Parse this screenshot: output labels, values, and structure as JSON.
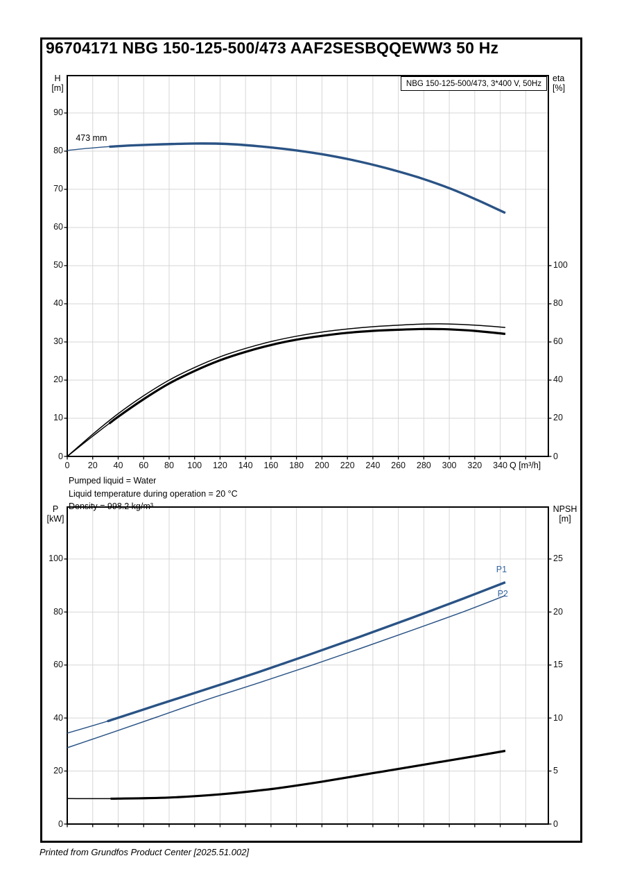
{
  "page": {
    "title": "96704171 NBG 150-125-500/473 AAF2SESBQQEWW3 50 Hz",
    "footer": "Printed from Grundfos Product Center [2025.51.002]",
    "info_lines": [
      "Pumped liquid = Water",
      "Liquid temperature during operation = 20 °C",
      "Density = 998.2 kg/m³"
    ]
  },
  "colors": {
    "curve_blue": "#2a5385",
    "curve_black": "#000000",
    "label_blue": "#3465a0",
    "gridline": "#d6d6d6",
    "frame": "#000000"
  },
  "chart_data": [
    {
      "type": "line",
      "name": "head-efficiency-chart",
      "legend": "NBG 150-125-500/473, 3*400 V, 50Hz",
      "xlabel": "Q [m³/h]",
      "x_axis": {
        "min": 0,
        "max": 377.8,
        "tick_labels": [
          0,
          20,
          40,
          60,
          80,
          100,
          120,
          140,
          160,
          180,
          200,
          220,
          240,
          260,
          280,
          300,
          320,
          340
        ],
        "gridlines": [
          20,
          40,
          60,
          80,
          100,
          120,
          140,
          160,
          180,
          200,
          220,
          240,
          260,
          280,
          300,
          320,
          340,
          360
        ],
        "extra_ticks": [
          360
        ],
        "show_tick_labels": true
      },
      "y_left": {
        "label": "H",
        "unit": "[m]",
        "min": 0,
        "max": 99.8,
        "tick_labels": [
          0,
          10,
          20,
          30,
          40,
          50,
          60,
          70,
          80,
          90
        ],
        "gridlines": [
          10,
          20,
          30,
          40,
          50,
          60,
          70,
          80,
          90
        ]
      },
      "y_right": {
        "label": "eta",
        "unit": "[%]",
        "min": 0,
        "max": 199.6,
        "tick_labels": [
          0,
          20,
          40,
          60,
          80,
          100
        ]
      },
      "series": [
        {
          "name": "head-curve-473mm",
          "axis": "left",
          "color": "#2a5385",
          "width": 1.4,
          "thick_width": 3.4,
          "thick_from_q": 33,
          "points": [
            [
              0,
              80.2
            ],
            [
              25,
              81.0
            ],
            [
              50,
              81.5
            ],
            [
              75,
              81.8
            ],
            [
              100,
              82.0
            ],
            [
              125,
              81.9
            ],
            [
              150,
              81.3
            ],
            [
              175,
              80.4
            ],
            [
              200,
              79.2
            ],
            [
              225,
              77.6
            ],
            [
              250,
              75.6
            ],
            [
              275,
              73.2
            ],
            [
              300,
              70.3
            ],
            [
              322,
              67.2
            ],
            [
              344,
              63.8
            ]
          ]
        },
        {
          "name": "efficiency-pump-curve",
          "axis": "right",
          "color": "#000000",
          "width": 1.5,
          "thick_width": null,
          "thick_from_q": null,
          "points": [
            [
              0,
              0
            ],
            [
              20,
              11.6
            ],
            [
              40,
              22.4
            ],
            [
              60,
              31.8
            ],
            [
              80,
              40.0
            ],
            [
              100,
              46.6
            ],
            [
              120,
              52.2
            ],
            [
              140,
              56.6
            ],
            [
              160,
              60.2
            ],
            [
              180,
              63.0
            ],
            [
              200,
              65.2
            ],
            [
              220,
              66.8
            ],
            [
              240,
              68.0
            ],
            [
              260,
              68.8
            ],
            [
              280,
              69.4
            ],
            [
              300,
              69.4
            ],
            [
              320,
              68.8
            ],
            [
              344,
              67.6
            ]
          ]
        },
        {
          "name": "efficiency-pump-motor-curve",
          "axis": "right",
          "color": "#000000",
          "width": 1.5,
          "thick_width": 3.2,
          "thick_from_q": 33,
          "points": [
            [
              0,
              0
            ],
            [
              20,
              10.6
            ],
            [
              40,
              20.8
            ],
            [
              60,
              30.0
            ],
            [
              80,
              38.2
            ],
            [
              100,
              44.8
            ],
            [
              120,
              50.4
            ],
            [
              140,
              54.8
            ],
            [
              160,
              58.4
            ],
            [
              180,
              61.2
            ],
            [
              200,
              63.2
            ],
            [
              220,
              64.8
            ],
            [
              240,
              65.8
            ],
            [
              260,
              66.4
            ],
            [
              280,
              66.8
            ],
            [
              300,
              66.6
            ],
            [
              320,
              65.8
            ],
            [
              344,
              64.2
            ]
          ]
        }
      ],
      "annotations": [
        {
          "name": "impeller-size-label",
          "text": "473 mm",
          "q": 19,
          "v": 83.5,
          "axis": "left",
          "color": "#000000"
        }
      ]
    },
    {
      "type": "line",
      "name": "power-npsh-chart",
      "legend": null,
      "xlabel": null,
      "x_axis": {
        "min": 0,
        "max": 377.8,
        "tick_labels": [
          0,
          20,
          40,
          60,
          80,
          100,
          120,
          140,
          160,
          180,
          200,
          220,
          240,
          260,
          280,
          300,
          320,
          340
        ],
        "gridlines": [
          20,
          40,
          60,
          80,
          100,
          120,
          140,
          160,
          180,
          200,
          220,
          240,
          260,
          280,
          300,
          320,
          340,
          360
        ],
        "extra_ticks": [
          360
        ],
        "show_tick_labels": false
      },
      "y_left": {
        "label": "P",
        "unit": "[kW]",
        "min": 0,
        "max": 119.6,
        "tick_labels": [
          0,
          20,
          40,
          60,
          80,
          100
        ],
        "gridlines": [
          20,
          40,
          60,
          80,
          100
        ]
      },
      "y_right": {
        "label": "NPSH",
        "unit": "[m]",
        "min": 0,
        "max": 29.9,
        "tick_labels": [
          0,
          5,
          10,
          15,
          20,
          25
        ]
      },
      "series": [
        {
          "name": "p1-power-curve",
          "axis": "left",
          "color": "#2a5385",
          "width": 1.4,
          "thick_width": 3.4,
          "thick_from_q": 34,
          "points": [
            [
              0,
              34.3
            ],
            [
              35,
              39.3
            ],
            [
              70,
              44.8
            ],
            [
              110,
              51.0
            ],
            [
              150,
              57.3
            ],
            [
              190,
              63.9
            ],
            [
              230,
              70.7
            ],
            [
              270,
              77.7
            ],
            [
              310,
              84.9
            ],
            [
              344,
              91.2
            ]
          ]
        },
        {
          "name": "p2-power-curve",
          "axis": "left",
          "color": "#2a5385",
          "width": 1.5,
          "thick_width": null,
          "thick_from_q": null,
          "points": [
            [
              0,
              28.8
            ],
            [
              35,
              34.5
            ],
            [
              70,
              40.3
            ],
            [
              110,
              47.0
            ],
            [
              150,
              53.2
            ],
            [
              190,
              59.6
            ],
            [
              230,
              66.2
            ],
            [
              270,
              73.0
            ],
            [
              310,
              79.9
            ],
            [
              344,
              86.2
            ]
          ]
        },
        {
          "name": "npsh-curve",
          "axis": "right",
          "color": "#000000",
          "width": 1.5,
          "thick_width": 3.2,
          "thick_from_q": 34,
          "points": [
            [
              0,
              2.4
            ],
            [
              40,
              2.4
            ],
            [
              80,
              2.5
            ],
            [
              120,
              2.8
            ],
            [
              160,
              3.3
            ],
            [
              200,
              4.0
            ],
            [
              240,
              4.8
            ],
            [
              280,
              5.6
            ],
            [
              320,
              6.4
            ],
            [
              344,
              6.9
            ]
          ]
        }
      ],
      "annotations": [
        {
          "name": "p1-label",
          "text": "P1",
          "q": 341,
          "v": 96.0,
          "axis": "left",
          "color": "#3465a0"
        },
        {
          "name": "p2-label",
          "text": "P2",
          "q": 342,
          "v": 86.8,
          "axis": "left",
          "color": "#3465a0"
        }
      ]
    }
  ]
}
